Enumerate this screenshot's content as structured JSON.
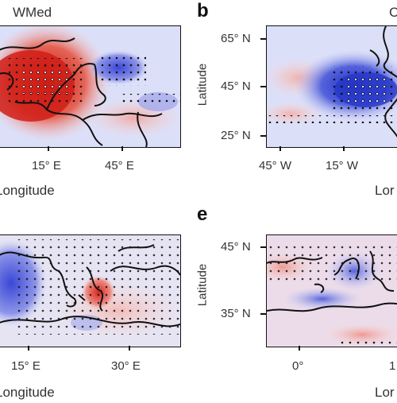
{
  "panels": {
    "a": {
      "title": "WMed",
      "x_ticks": [
        "15° E",
        "45° E"
      ],
      "x_label": "Longitude"
    },
    "b": {
      "letter": "b",
      "title_fragment": "C",
      "y_ticks": [
        "65° N",
        "45° N",
        "25° N"
      ],
      "y_label": "Latitude",
      "x_ticks": [
        "45° W",
        "15° W"
      ],
      "x_label_fragment": "Lor"
    },
    "d": {
      "x_ticks": [
        "15° E",
        "30° E"
      ],
      "x_label": "Longitude"
    },
    "e": {
      "letter": "e",
      "y_ticks": [
        "45° N",
        "35° N"
      ],
      "y_label": "Latitude",
      "x_ticks": [
        "0°",
        "1"
      ],
      "x_label_fragment": "Lor"
    }
  },
  "colors": {
    "warm_anomaly": "#d8261c",
    "cool_anomaly": "#2f3fd0",
    "neutral": "#dcdff8",
    "coastline": "#111111"
  }
}
